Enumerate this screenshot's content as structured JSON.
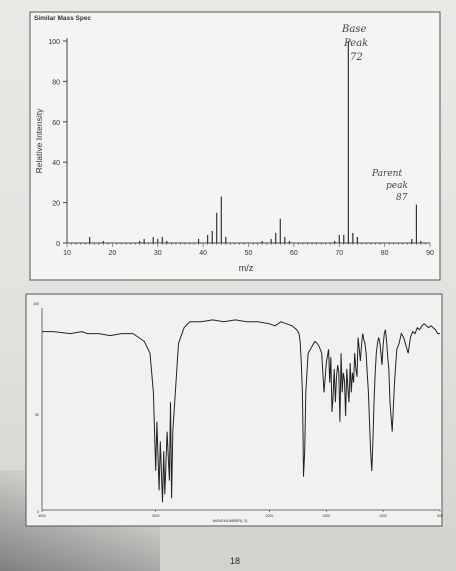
{
  "ms_title": "Similar Mass Spec",
  "ir_xlabel": "WAVENUMBER(-1)",
  "page_number": "18",
  "chart_data": [
    {
      "type": "bar",
      "title": "Similar Mass Spec",
      "xlabel": "m/z",
      "ylabel": "Relative Intensity",
      "xlim": [
        10,
        90
      ],
      "ylim": [
        0,
        100
      ],
      "x_ticks": [
        10,
        20,
        30,
        40,
        50,
        60,
        70,
        80,
        90
      ],
      "y_ticks": [
        0,
        20,
        40,
        60,
        80,
        100
      ],
      "grid": false,
      "annotations": [
        {
          "text": "Base",
          "line": 1
        },
        {
          "text": "Peak",
          "line": 2
        },
        {
          "text": "72",
          "line": 3
        },
        {
          "text": "Parent",
          "line": 4
        },
        {
          "text": "peak",
          "line": 5
        },
        {
          "text": "87",
          "line": 6
        }
      ],
      "peaks": [
        {
          "x": 15,
          "y": 3
        },
        {
          "x": 18,
          "y": 1
        },
        {
          "x": 26,
          "y": 1
        },
        {
          "x": 27,
          "y": 2
        },
        {
          "x": 29,
          "y": 3
        },
        {
          "x": 30,
          "y": 2
        },
        {
          "x": 31,
          "y": 3
        },
        {
          "x": 32,
          "y": 1
        },
        {
          "x": 39,
          "y": 2
        },
        {
          "x": 41,
          "y": 4
        },
        {
          "x": 42,
          "y": 6
        },
        {
          "x": 43,
          "y": 15
        },
        {
          "x": 44,
          "y": 23
        },
        {
          "x": 45,
          "y": 3
        },
        {
          "x": 53,
          "y": 1
        },
        {
          "x": 55,
          "y": 2
        },
        {
          "x": 56,
          "y": 5
        },
        {
          "x": 57,
          "y": 12
        },
        {
          "x": 58,
          "y": 3
        },
        {
          "x": 59,
          "y": 1
        },
        {
          "x": 69,
          "y": 1
        },
        {
          "x": 70,
          "y": 4
        },
        {
          "x": 71,
          "y": 4
        },
        {
          "x": 72,
          "y": 100
        },
        {
          "x": 73,
          "y": 5
        },
        {
          "x": 74,
          "y": 3
        },
        {
          "x": 86,
          "y": 2
        },
        {
          "x": 87,
          "y": 19
        },
        {
          "x": 88,
          "y": 1
        }
      ]
    },
    {
      "type": "line",
      "xlabel": "WAVENUMBER(-1)",
      "ylabel": "",
      "xlim": [
        4000,
        500
      ],
      "ylim": [
        0,
        100
      ],
      "x_tick_labels": [
        "4000",
        "3000",
        "2000",
        "1500",
        "1000",
        "500"
      ],
      "y_tick_labels": [
        "100",
        "50",
        "0"
      ],
      "x": [
        4000,
        3900,
        3750,
        3650,
        3600,
        3500,
        3400,
        3300,
        3200,
        3150,
        3100,
        3050,
        3020,
        3000,
        2990,
        2970,
        2960,
        2940,
        2930,
        2920,
        2900,
        2880,
        2870,
        2860,
        2850,
        2800,
        2750,
        2700,
        2650,
        2600,
        2500,
        2400,
        2300,
        2200,
        2100,
        2000,
        1950,
        1900,
        1850,
        1800,
        1780,
        1760,
        1740,
        1730,
        1720,
        1715,
        1710,
        1705,
        1700,
        1690,
        1680,
        1660,
        1640,
        1620,
        1600,
        1580,
        1560,
        1540,
        1520,
        1500,
        1480,
        1470,
        1460,
        1450,
        1440,
        1430,
        1420,
        1410,
        1400,
        1390,
        1380,
        1370,
        1360,
        1350,
        1340,
        1330,
        1320,
        1310,
        1300,
        1290,
        1280,
        1270,
        1260,
        1250,
        1240,
        1230,
        1220,
        1210,
        1200,
        1190,
        1180,
        1170,
        1160,
        1150,
        1140,
        1130,
        1120,
        1110,
        1100,
        1090,
        1080,
        1070,
        1060,
        1050,
        1040,
        1030,
        1020,
        1010,
        1000,
        990,
        980,
        970,
        960,
        950,
        940,
        920,
        900,
        880,
        860,
        840,
        820,
        800,
        780,
        760,
        740,
        720,
        700,
        680,
        660,
        640,
        620,
        600,
        580,
        560,
        540,
        520,
        500
      ],
      "y": [
        91,
        91,
        90,
        91,
        90,
        90,
        89,
        90,
        90,
        88,
        86,
        80,
        60,
        20,
        45,
        10,
        35,
        4,
        30,
        8,
        40,
        15,
        55,
        6,
        40,
        85,
        93,
        96,
        96,
        96,
        97,
        96,
        97,
        96,
        96,
        95,
        94,
        96,
        95,
        94,
        93,
        92,
        90,
        86,
        75,
        68,
        60,
        40,
        17,
        30,
        60,
        80,
        82,
        84,
        86,
        85,
        83,
        80,
        60,
        75,
        82,
        65,
        78,
        50,
        58,
        72,
        55,
        68,
        74,
        70,
        45,
        80,
        60,
        70,
        66,
        48,
        72,
        62,
        55,
        75,
        60,
        70,
        65,
        80,
        72,
        68,
        88,
        82,
        76,
        84,
        90,
        87,
        85,
        80,
        70,
        60,
        45,
        30,
        20,
        35,
        55,
        70,
        80,
        85,
        88,
        86,
        80,
        74,
        84,
        90,
        92,
        86,
        78,
        72,
        55,
        40,
        65,
        82,
        85,
        90,
        88,
        84,
        80,
        88,
        91,
        90,
        93,
        92,
        94,
        95,
        94,
        93,
        94,
        93,
        92,
        90,
        90
      ]
    }
  ]
}
